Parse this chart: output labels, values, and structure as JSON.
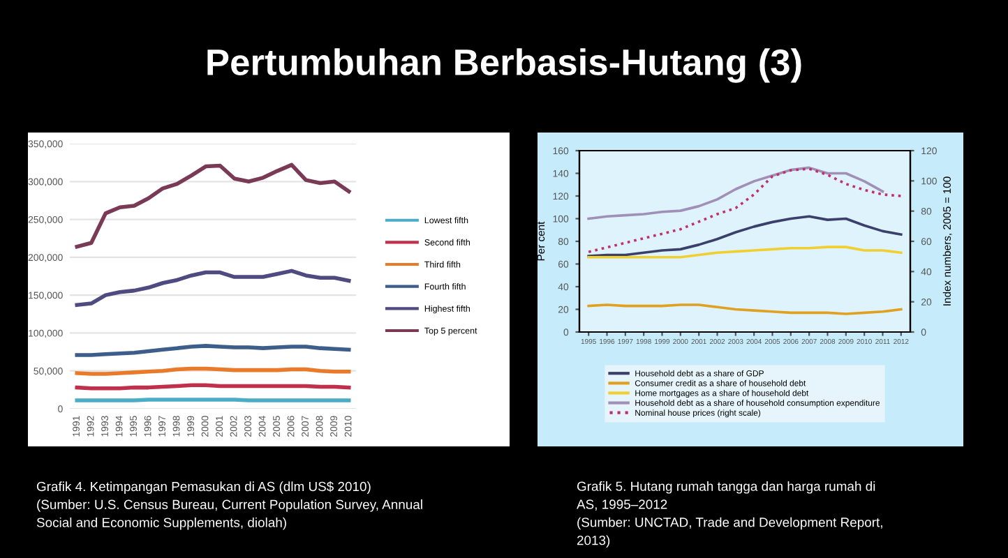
{
  "chart_data": [
    {
      "type": "line",
      "title": "Pertumbuhan Berbasis-Hutang (3)",
      "categories": [
        "1991",
        "1992",
        "1993",
        "1994",
        "1995",
        "1996",
        "1997",
        "1998",
        "1999",
        "2000",
        "2001",
        "2002",
        "2003",
        "2004",
        "2005",
        "2006",
        "2007",
        "2008",
        "2009",
        "2010"
      ],
      "series": [
        {
          "name": "Lowest fifth",
          "color": "#4bacc6",
          "values": [
            11000,
            11000,
            11000,
            11000,
            11000,
            12000,
            12000,
            12000,
            12000,
            12000,
            12000,
            12000,
            11000,
            11000,
            11000,
            11000,
            11000,
            11000,
            11000,
            11000
          ]
        },
        {
          "name": "Second fifth",
          "color": "#c0304a",
          "values": [
            28000,
            27000,
            27000,
            27000,
            28000,
            28000,
            29000,
            30000,
            31000,
            31000,
            30000,
            30000,
            30000,
            30000,
            30000,
            30000,
            30000,
            29000,
            29000,
            28000
          ]
        },
        {
          "name": "Third fifth",
          "color": "#e97a2a",
          "values": [
            47000,
            46000,
            46000,
            47000,
            48000,
            49000,
            50000,
            52000,
            53000,
            53000,
            52000,
            51000,
            51000,
            51000,
            51000,
            52000,
            52000,
            50000,
            49000,
            49000
          ]
        },
        {
          "name": "Fourth fifth",
          "color": "#3d5e8a",
          "values": [
            71000,
            71000,
            72000,
            73000,
            74000,
            76000,
            78000,
            80000,
            82000,
            83000,
            82000,
            81000,
            81000,
            80000,
            81000,
            82000,
            82000,
            80000,
            79000,
            78000
          ]
        },
        {
          "name": "Highest fifth",
          "color": "#4f4a80",
          "values": [
            137000,
            139000,
            150000,
            154000,
            156000,
            160000,
            166000,
            170000,
            176000,
            180000,
            180000,
            174000,
            174000,
            174000,
            178000,
            182000,
            176000,
            173000,
            173000,
            169000
          ]
        },
        {
          "name": "Top 5 percent",
          "color": "#7a3a55",
          "values": [
            214000,
            219000,
            258000,
            266000,
            268000,
            278000,
            291000,
            297000,
            308000,
            320000,
            321000,
            304000,
            300000,
            305000,
            314000,
            322000,
            302000,
            298000,
            300000,
            287000
          ]
        }
      ],
      "ylim": [
        0,
        350000
      ],
      "yticks": [
        0,
        {
          "value": 50000,
          "label": "50,000"
        },
        {
          "value": 100000,
          "label": "100,000"
        },
        {
          "value": 150000,
          "label": "150,000"
        },
        {
          "value": 200000,
          "label": "200,000"
        },
        {
          "value": 250000,
          "label": "250,000"
        },
        {
          "value": 300000,
          "label": "300,000"
        },
        {
          "value": 350000,
          "label": "350,000"
        }
      ],
      "grid": "y",
      "legend": "right",
      "annotations": [
        "Grafik 4. Ketimpangan Pemasukan di AS (dlm US$ 2010)\n(Sumber: U.S. Census Bureau, Current Population Survey, Annual\nSocial and Economic Supplements, diolah)"
      ]
    },
    {
      "type": "line",
      "categories": [
        "1995",
        "1996",
        "1997",
        "1998",
        "1999",
        "2000",
        "2001",
        "2002",
        "2003",
        "2004",
        "2005",
        "2006",
        "2007",
        "2008",
        "2009",
        "2010",
        "2011",
        "2012"
      ],
      "series": [
        {
          "name": "Household debt as a share of GDP",
          "color": "#3b3f6b",
          "values": [
            67,
            68,
            68,
            70,
            72,
            73,
            77,
            82,
            88,
            93,
            97,
            100,
            102,
            99,
            100,
            94,
            89,
            86
          ]
        },
        {
          "name": "Consumer credit as a share of household debt",
          "color": "#e0a020",
          "values": [
            23,
            24,
            23,
            23,
            23,
            24,
            24,
            22,
            20,
            19,
            18,
            17,
            17,
            17,
            16,
            17,
            18,
            20
          ]
        },
        {
          "name": "Home mortgages as a share of household debt",
          "color": "#f0d030",
          "values": [
            66,
            66,
            66,
            66,
            66,
            66,
            68,
            70,
            71,
            72,
            73,
            74,
            74,
            75,
            75,
            72,
            72,
            70
          ]
        },
        {
          "name": "Household debt as a share of household consumption expenditure",
          "color": "#a090b8",
          "values": [
            100,
            102,
            103,
            104,
            106,
            107,
            111,
            117,
            126,
            133,
            138,
            143,
            145,
            140,
            140,
            133,
            124,
            null
          ]
        },
        {
          "name": "Nominal house prices (right scale)",
          "color": "#c0306a",
          "axis": "y2",
          "line_style": "dotted",
          "values": [
            53,
            56,
            59,
            62,
            65,
            68,
            73,
            78,
            82,
            91,
            103,
            107,
            108,
            104,
            98,
            94,
            91,
            90
          ]
        }
      ],
      "ylim": [
        0,
        160
      ],
      "yticks": [
        0,
        20,
        40,
        60,
        80,
        100,
        120,
        140,
        160
      ],
      "y2lim": [
        0,
        120
      ],
      "y2ticks": [
        0,
        20,
        40,
        60,
        80,
        100,
        120
      ],
      "ylabel": "Per cent",
      "y2label": "Index numbers, 2005 = 100",
      "grid": false,
      "legend": "bottom",
      "annotations": [
        "Grafik 5. Hutang rumah tangga dan harga rumah di\nAS, 1995–2012\n(Sumber: UNCTAD, Trade and Development Report,\n2013)"
      ]
    }
  ]
}
